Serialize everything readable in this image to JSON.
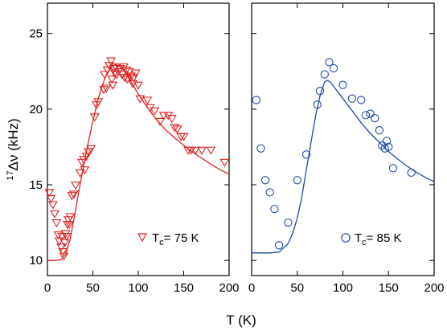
{
  "chart_data": [
    {
      "type": "scatter",
      "panel": "left",
      "xlim": [
        0,
        200
      ],
      "ylim": [
        9,
        27
      ],
      "xticks": [
        0,
        50,
        100,
        150,
        200
      ],
      "yticks": [
        10,
        15,
        20,
        25
      ],
      "ytick_labels": [
        "10",
        "15",
        "20",
        "25"
      ],
      "ylabel": {
        "pre": "17",
        "main": "Δν",
        "post": " (kHz)"
      },
      "legend": {
        "symbol": "down-triangle",
        "pre": "T",
        "sub": "c",
        "post": "= 75 K",
        "placement": "bottom-right"
      },
      "color": "#e0211f",
      "series": [
        {
          "marker": "down-triangle",
          "points": [
            [
              2,
              14.5
            ],
            [
              4,
              14.1
            ],
            [
              6,
              13.7
            ],
            [
              8,
              13.1
            ],
            [
              10,
              12.5
            ],
            [
              12,
              11.7
            ],
            [
              13,
              11.3
            ],
            [
              15,
              10.9
            ],
            [
              16,
              11.6
            ],
            [
              17,
              10.6
            ],
            [
              18,
              10.3
            ],
            [
              19,
              11.2
            ],
            [
              20,
              11.8
            ],
            [
              21,
              11.6
            ],
            [
              22,
              12.4
            ],
            [
              23,
              12.7
            ],
            [
              24,
              12.4
            ],
            [
              25,
              12.9
            ],
            [
              27,
              14.3
            ],
            [
              29,
              14.4
            ],
            [
              31,
              15.0
            ],
            [
              36,
              15.8
            ],
            [
              38,
              16.5
            ],
            [
              40,
              16.7
            ],
            [
              41,
              16.0
            ],
            [
              43,
              16.9
            ],
            [
              45,
              17.2
            ],
            [
              48,
              17.4
            ],
            [
              52,
              19.5
            ],
            [
              54,
              20.3
            ],
            [
              56,
              20.5
            ],
            [
              62,
              21.3
            ],
            [
              63,
              22.3
            ],
            [
              65,
              21.4
            ],
            [
              66,
              22.6
            ],
            [
              68,
              22.9
            ],
            [
              70,
              23.2
            ],
            [
              71,
              22.0
            ],
            [
              72,
              21.6
            ],
            [
              73,
              22.7
            ],
            [
              74,
              22.4
            ],
            [
              75,
              22.8
            ],
            [
              76,
              22.3
            ],
            [
              78,
              22.5
            ],
            [
              80,
              22.7
            ],
            [
              82,
              22.3
            ],
            [
              84,
              22.8
            ],
            [
              85,
              22.1
            ],
            [
              87,
              22.6
            ],
            [
              88,
              22.0
            ],
            [
              90,
              22.5
            ],
            [
              92,
              22.2
            ],
            [
              94,
              21.7
            ],
            [
              95,
              22.1
            ],
            [
              97,
              22.4
            ],
            [
              100,
              21.6
            ],
            [
              102,
              20.7
            ],
            [
              110,
              20.6
            ],
            [
              113,
              20.1
            ],
            [
              118,
              19.9
            ],
            [
              124,
              19.2
            ],
            [
              128,
              19.6
            ],
            [
              133,
              19.6
            ],
            [
              137,
              19.4
            ],
            [
              140,
              18.8
            ],
            [
              143,
              18.7
            ],
            [
              147,
              18.2
            ],
            [
              150,
              18.2
            ],
            [
              155,
              17.3
            ],
            [
              158,
              17.3
            ],
            [
              163,
              17.3
            ],
            [
              170,
              17.3
            ],
            [
              180,
              17.3
            ],
            [
              195,
              16.5
            ]
          ]
        },
        {
          "name": "fit",
          "type": "line",
          "points": [
            [
              0,
              10.0
            ],
            [
              10,
              10.0
            ],
            [
              15,
              10.05
            ],
            [
              20,
              10.4
            ],
            [
              25,
              11.4
            ],
            [
              30,
              13.0
            ],
            [
              35,
              14.7
            ],
            [
              40,
              16.3
            ],
            [
              45,
              17.8
            ],
            [
              50,
              19.2
            ],
            [
              55,
              20.5
            ],
            [
              60,
              21.5
            ],
            [
              65,
              22.3
            ],
            [
              70,
              22.75
            ],
            [
              75,
              22.95
            ],
            [
              80,
              22.8
            ],
            [
              85,
              22.5
            ],
            [
              90,
              22.0
            ],
            [
              100,
              21.0
            ],
            [
              110,
              20.1
            ],
            [
              120,
              19.3
            ],
            [
              130,
              18.65
            ],
            [
              140,
              18.1
            ],
            [
              150,
              17.6
            ],
            [
              160,
              17.15
            ],
            [
              170,
              16.75
            ],
            [
              180,
              16.35
            ],
            [
              190,
              16.0
            ],
            [
              200,
              15.7
            ]
          ]
        }
      ]
    },
    {
      "type": "scatter",
      "panel": "right",
      "xlim": [
        0,
        200
      ],
      "ylim": [
        9,
        27
      ],
      "xticks": [
        0,
        50,
        100,
        150,
        200
      ],
      "yticks": [
        10,
        15,
        20,
        25
      ],
      "legend": {
        "symbol": "circle",
        "pre": "T",
        "sub": "c",
        "post": "= 85 K",
        "placement": "bottom-right"
      },
      "color": "#1f4aa8",
      "series": [
        {
          "marker": "open-circle",
          "points": [
            [
              5,
              20.6
            ],
            [
              10,
              17.4
            ],
            [
              15,
              15.3
            ],
            [
              20,
              14.5
            ],
            [
              25,
              13.4
            ],
            [
              30,
              11.0
            ],
            [
              40,
              12.5
            ],
            [
              50,
              15.3
            ],
            [
              60,
              17.0
            ],
            [
              72,
              20.3
            ],
            [
              75,
              21.2
            ],
            [
              80,
              22.3
            ],
            [
              85,
              23.1
            ],
            [
              90,
              22.7
            ],
            [
              100,
              21.6
            ],
            [
              110,
              20.7
            ],
            [
              120,
              20.6
            ],
            [
              125,
              19.6
            ],
            [
              130,
              19.7
            ],
            [
              135,
              19.4
            ],
            [
              140,
              18.6
            ],
            [
              143,
              17.6
            ],
            [
              146,
              17.4
            ],
            [
              148,
              17.9
            ],
            [
              150,
              17.5
            ],
            [
              155,
              16.1
            ],
            [
              175,
              15.8
            ]
          ]
        },
        {
          "name": "fit",
          "type": "line",
          "points": [
            [
              0,
              10.5
            ],
            [
              10,
              10.5
            ],
            [
              20,
              10.5
            ],
            [
              30,
              10.55
            ],
            [
              40,
              11.1
            ],
            [
              45,
              11.8
            ],
            [
              50,
              12.8
            ],
            [
              55,
              14.2
            ],
            [
              60,
              16.0
            ],
            [
              65,
              17.8
            ],
            [
              70,
              19.5
            ],
            [
              75,
              20.9
            ],
            [
              80,
              21.8
            ],
            [
              83,
              21.9
            ],
            [
              86,
              21.8
            ],
            [
              90,
              21.5
            ],
            [
              100,
              20.7
            ],
            [
              110,
              19.9
            ],
            [
              120,
              19.1
            ],
            [
              130,
              18.4
            ],
            [
              140,
              17.8
            ],
            [
              150,
              17.2
            ],
            [
              160,
              16.7
            ],
            [
              170,
              16.25
            ],
            [
              180,
              15.85
            ],
            [
              190,
              15.5
            ],
            [
              200,
              15.2
            ]
          ]
        }
      ]
    }
  ],
  "shared_xlabel": "T (K)"
}
